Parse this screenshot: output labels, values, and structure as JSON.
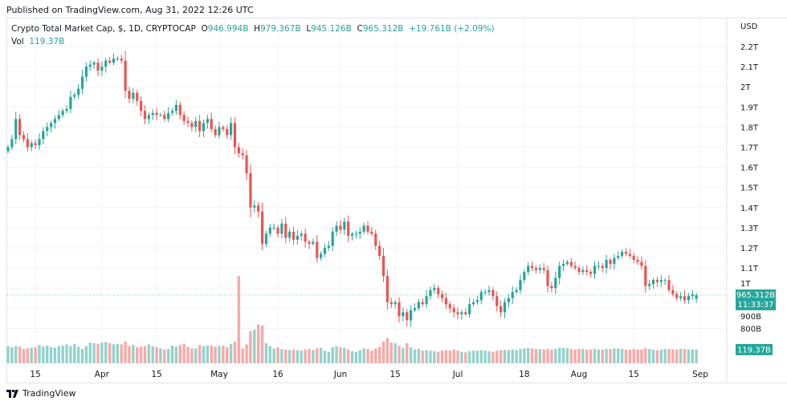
{
  "published": "Published on TradingView.com, Aug 31, 2022 12:26 UTC",
  "legend": {
    "symbol": "Crypto Total Market Cap, $, 1D, CRYPTOCAP",
    "open_label": "O",
    "open": "946.994B",
    "high_label": "H",
    "high": "979.367B",
    "low_label": "L",
    "low": "945.126B",
    "close_label": "C",
    "close": "965.312B",
    "change": "+19.761B (+2.09%)",
    "vol_label": "Vol",
    "vol": "119.37B"
  },
  "price_badge": {
    "price": "965.312B",
    "countdown": "11:33:37"
  },
  "volume_badge": "119.37B",
  "logo_text": "TradingView",
  "colors": {
    "up": "#26a69a",
    "down": "#ef5350",
    "up_volume": "#93d2cc",
    "down_volume": "#f7a9a7",
    "grid": "#f0f3fa"
  },
  "chart_data": {
    "type": "candlestick",
    "currency_label": "USD",
    "y_unit": "T (trillion USD)",
    "ylim": [
      0.78,
      2.25
    ],
    "y_ticks": [
      {
        "value": 2.2,
        "label": "2.2T"
      },
      {
        "value": 2.1,
        "label": "2.1T"
      },
      {
        "value": 2.0,
        "label": "2T"
      },
      {
        "value": 1.9,
        "label": "1.9T"
      },
      {
        "value": 1.8,
        "label": "1.8T"
      },
      {
        "value": 1.7,
        "label": "1.7T"
      },
      {
        "value": 1.6,
        "label": "1.6T"
      },
      {
        "value": 1.5,
        "label": "1.5T"
      },
      {
        "value": 1.4,
        "label": "1.4T"
      },
      {
        "value": 1.3,
        "label": "1.3T"
      },
      {
        "value": 1.2,
        "label": "1.2T"
      },
      {
        "value": 1.1,
        "label": "1.1T"
      },
      {
        "value": 1.0,
        "label": "1T"
      },
      {
        "value": 0.9,
        "label": "900B"
      },
      {
        "value": 0.8,
        "label": "800B"
      }
    ],
    "x_ticks": [
      {
        "date": "2022-03-15",
        "label": "15"
      },
      {
        "date": "2022-04-01",
        "label": "Apr"
      },
      {
        "date": "2022-04-15",
        "label": "15"
      },
      {
        "date": "2022-05-01",
        "label": "May"
      },
      {
        "date": "2022-05-16",
        "label": "16"
      },
      {
        "date": "2022-06-01",
        "label": "Jun"
      },
      {
        "date": "2022-06-15",
        "label": "15"
      },
      {
        "date": "2022-07-01",
        "label": "Jul"
      },
      {
        "date": "2022-07-18",
        "label": "18"
      },
      {
        "date": "2022-08-01",
        "label": "Aug"
      },
      {
        "date": "2022-08-15",
        "label": "15"
      },
      {
        "date": "2022-09-01",
        "label": "Sep"
      }
    ],
    "last_price": 0.965312,
    "months": [
      {
        "month": "2022-03",
        "first_day": 8,
        "closes": [
          1.7,
          1.74,
          1.84,
          1.76,
          1.74,
          1.7,
          1.72,
          1.71,
          1.74,
          1.78,
          1.8,
          1.82,
          1.84,
          1.86,
          1.88,
          1.89,
          1.95,
          1.96,
          1.99,
          2.05,
          2.1,
          2.11,
          2.12,
          2.08
        ],
        "volumes_b": [
          150,
          140,
          150,
          145,
          125,
          130,
          135,
          140,
          160,
          145,
          155,
          140,
          135,
          150,
          155,
          165,
          150,
          170,
          145,
          125,
          150,
          180,
          175,
          170
        ]
      },
      {
        "month": "2022-04",
        "first_day": 1,
        "closes": [
          2.1,
          2.13,
          2.12,
          2.14,
          2.14,
          2.13,
          1.98,
          1.94,
          1.97,
          1.93,
          1.88,
          1.84,
          1.86,
          1.87,
          1.86,
          1.86,
          1.84,
          1.87,
          1.88,
          1.91,
          1.86,
          1.83,
          1.82,
          1.8,
          1.83,
          1.78,
          1.82,
          1.84,
          1.79,
          1.76
        ],
        "volumes_b": [
          180,
          185,
          175,
          165,
          170,
          165,
          190,
          150,
          160,
          140,
          145,
          150,
          165,
          150,
          140,
          130,
          120,
          125,
          155,
          145,
          160,
          170,
          145,
          130,
          130,
          160,
          150,
          155,
          155,
          145
        ]
      },
      {
        "month": "2022-05",
        "first_day": 1,
        "closes": [
          1.8,
          1.79,
          1.76,
          1.82,
          1.7,
          1.67,
          1.66,
          1.57,
          1.4,
          1.41,
          1.38,
          1.22,
          1.27,
          1.3,
          1.3,
          1.27,
          1.32,
          1.25,
          1.28,
          1.24,
          1.26,
          1.27,
          1.23,
          1.22,
          1.23,
          1.15,
          1.17,
          1.2,
          1.21,
          1.28,
          1.31
        ],
        "volumes_b": [
          150,
          155,
          140,
          170,
          190,
          760,
          130,
          165,
          280,
          295,
          340,
          330,
          175,
          150,
          130,
          140,
          125,
          120,
          115,
          120,
          115,
          110,
          120,
          125,
          115,
          130,
          135,
          110,
          100,
          140,
          150
        ]
      },
      {
        "month": "2022-06",
        "first_day": 1,
        "closes": [
          1.29,
          1.33,
          1.26,
          1.27,
          1.27,
          1.28,
          1.31,
          1.28,
          1.27,
          1.21,
          1.16,
          1.06,
          0.93,
          0.92,
          0.93,
          0.86,
          0.88,
          0.84,
          0.89,
          0.9,
          0.93,
          0.92,
          0.96,
          0.99,
          1.0,
          0.97,
          0.95,
          0.92,
          0.9,
          0.88
        ],
        "volumes_b": [
          140,
          135,
          120,
          105,
          100,
          115,
          130,
          125,
          110,
          130,
          145,
          190,
          220,
          180,
          175,
          150,
          135,
          175,
          140,
          120,
          125,
          110,
          115,
          110,
          105,
          100,
          110,
          115,
          110,
          120
        ]
      },
      {
        "month": "2022-07",
        "first_day": 1,
        "closes": [
          0.87,
          0.88,
          0.87,
          0.92,
          0.93,
          0.94,
          0.98,
          0.98,
          0.99,
          0.96,
          0.91,
          0.88,
          0.93,
          0.95,
          0.98,
          0.99,
          1.04,
          1.08,
          1.11,
          1.1,
          1.09,
          1.1,
          1.09,
          1.01,
          1.0,
          1.05,
          1.11,
          1.12,
          1.13,
          1.11,
          1.1
        ],
        "volumes_b": [
          110,
          100,
          95,
          105,
          110,
          110,
          115,
          110,
          105,
          100,
          110,
          115,
          120,
          115,
          120,
          115,
          125,
          130,
          135,
          130,
          125,
          125,
          120,
          125,
          120,
          125,
          135,
          135,
          130,
          125,
          120
        ]
      },
      {
        "month": "2022-08",
        "first_day": 1,
        "closes": [
          1.08,
          1.09,
          1.08,
          1.07,
          1.11,
          1.11,
          1.1,
          1.14,
          1.12,
          1.15,
          1.16,
          1.18,
          1.17,
          1.16,
          1.14,
          1.13,
          1.11,
          1.01,
          1.02,
          1.04,
          1.03,
          1.04,
          1.04,
          0.99,
          0.97,
          0.95,
          0.96,
          0.94,
          0.96,
          0.97,
          0.965
        ],
        "volumes_b": [
          125,
          125,
          120,
          120,
          125,
          120,
          120,
          125,
          125,
          130,
          130,
          125,
          120,
          120,
          125,
          120,
          120,
          130,
          125,
          120,
          115,
          120,
          125,
          125,
          120,
          120,
          125,
          125,
          120,
          120,
          119.37
        ]
      }
    ]
  }
}
